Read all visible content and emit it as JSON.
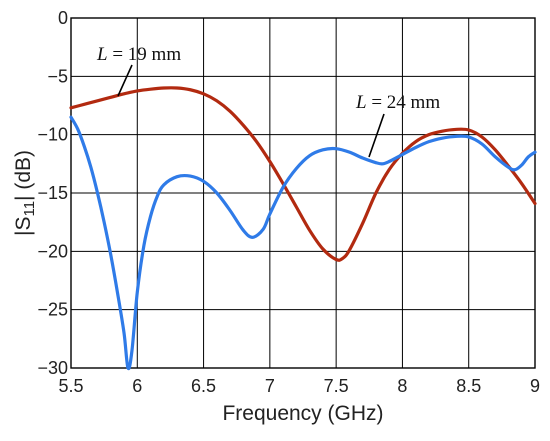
{
  "chart_data": {
    "type": "line",
    "title": "",
    "xlabel": "Frequency (GHz)",
    "ylabel_prefix": "|S",
    "ylabel_sub": "11",
    "ylabel_suffix": "| (dB)",
    "xlim": [
      5.5,
      9
    ],
    "ylim": [
      -30,
      0
    ],
    "grid": true,
    "legend": "none",
    "xticks": [
      5.5,
      6,
      6.5,
      7,
      7.5,
      8,
      8.5,
      9
    ],
    "xtick_labels": [
      "5.5",
      "6",
      "6.5",
      "7",
      "7.5",
      "8",
      "8.5",
      "9"
    ],
    "yticks": [
      0,
      -5,
      -10,
      -15,
      -20,
      -25,
      -30
    ],
    "ytick_labels": [
      "0",
      "−5",
      "−10",
      "−15",
      "−20",
      "−25",
      "−30"
    ],
    "series": [
      {
        "name": "L = 19 mm",
        "color": "#b22a10",
        "points": [
          [
            5.5,
            -7.7
          ],
          [
            5.6,
            -7.4
          ],
          [
            5.7,
            -7.1
          ],
          [
            5.8,
            -6.8
          ],
          [
            5.9,
            -6.5
          ],
          [
            6.0,
            -6.25
          ],
          [
            6.1,
            -6.1
          ],
          [
            6.2,
            -6.0
          ],
          [
            6.3,
            -6.0
          ],
          [
            6.4,
            -6.15
          ],
          [
            6.5,
            -6.5
          ],
          [
            6.6,
            -7.1
          ],
          [
            6.7,
            -8.0
          ],
          [
            6.8,
            -9.2
          ],
          [
            6.9,
            -10.6
          ],
          [
            7.0,
            -12.3
          ],
          [
            7.1,
            -14.2
          ],
          [
            7.2,
            -16.2
          ],
          [
            7.3,
            -18.2
          ],
          [
            7.4,
            -19.8
          ],
          [
            7.5,
            -20.7
          ],
          [
            7.55,
            -20.6
          ],
          [
            7.6,
            -19.9
          ],
          [
            7.7,
            -17.6
          ],
          [
            7.8,
            -15.0
          ],
          [
            7.9,
            -13.0
          ],
          [
            8.0,
            -11.6
          ],
          [
            8.1,
            -10.6
          ],
          [
            8.2,
            -10.0
          ],
          [
            8.3,
            -9.7
          ],
          [
            8.4,
            -9.55
          ],
          [
            8.5,
            -9.6
          ],
          [
            8.6,
            -10.2
          ],
          [
            8.7,
            -11.3
          ],
          [
            8.8,
            -12.7
          ],
          [
            8.9,
            -14.2
          ],
          [
            9.0,
            -15.9
          ]
        ]
      },
      {
        "name": "L = 24 mm",
        "color": "#2f7be8",
        "points": [
          [
            5.5,
            -8.5
          ],
          [
            5.55,
            -9.5
          ],
          [
            5.6,
            -11.0
          ],
          [
            5.65,
            -12.8
          ],
          [
            5.7,
            -15.0
          ],
          [
            5.75,
            -17.5
          ],
          [
            5.8,
            -20.3
          ],
          [
            5.85,
            -23.5
          ],
          [
            5.9,
            -27.0
          ],
          [
            5.93,
            -30.0
          ],
          [
            5.96,
            -28.5
          ],
          [
            6.0,
            -23.5
          ],
          [
            6.05,
            -19.5
          ],
          [
            6.1,
            -17.0
          ],
          [
            6.15,
            -15.3
          ],
          [
            6.2,
            -14.3
          ],
          [
            6.3,
            -13.6
          ],
          [
            6.4,
            -13.55
          ],
          [
            6.5,
            -14.0
          ],
          [
            6.6,
            -15.0
          ],
          [
            6.7,
            -16.5
          ],
          [
            6.8,
            -18.2
          ],
          [
            6.87,
            -18.8
          ],
          [
            6.95,
            -18.1
          ],
          [
            7.0,
            -16.8
          ],
          [
            7.1,
            -14.5
          ],
          [
            7.2,
            -12.9
          ],
          [
            7.3,
            -11.8
          ],
          [
            7.4,
            -11.3
          ],
          [
            7.5,
            -11.2
          ],
          [
            7.6,
            -11.5
          ],
          [
            7.7,
            -12.0
          ],
          [
            7.8,
            -12.4
          ],
          [
            7.85,
            -12.5
          ],
          [
            7.9,
            -12.3
          ],
          [
            8.0,
            -11.7
          ],
          [
            8.1,
            -11.1
          ],
          [
            8.2,
            -10.6
          ],
          [
            8.3,
            -10.3
          ],
          [
            8.4,
            -10.15
          ],
          [
            8.5,
            -10.2
          ],
          [
            8.6,
            -10.8
          ],
          [
            8.7,
            -11.9
          ],
          [
            8.8,
            -12.8
          ],
          [
            8.85,
            -13.0
          ],
          [
            8.9,
            -12.6
          ],
          [
            8.95,
            -11.9
          ],
          [
            9.0,
            -11.5
          ]
        ]
      }
    ],
    "annotations": [
      {
        "text": "L = 19 mm",
        "series": 0
      },
      {
        "text": "L = 24 mm",
        "series": 1
      }
    ]
  }
}
